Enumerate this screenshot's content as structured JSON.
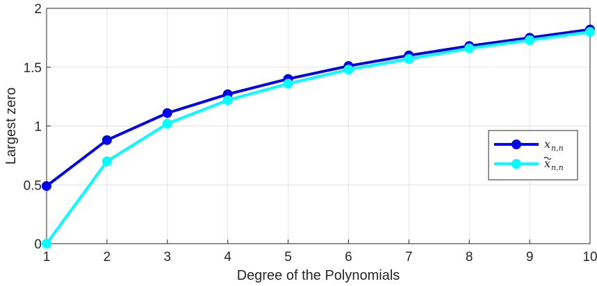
{
  "chart_data": {
    "type": "line",
    "xlabel": "Degree of the Polynomials",
    "ylabel": "Largest zero",
    "xlim": [
      1,
      10
    ],
    "ylim": [
      0,
      2
    ],
    "x": [
      1,
      2,
      3,
      4,
      5,
      6,
      7,
      8,
      9,
      10
    ],
    "xticks": [
      "1",
      "2",
      "3",
      "4",
      "5",
      "6",
      "7",
      "8",
      "9",
      "10"
    ],
    "yticks": [
      "0",
      "0.5",
      "1",
      "1.5",
      "2"
    ],
    "ytick_values": [
      0,
      0.5,
      1,
      1.5,
      2
    ],
    "grid": true,
    "legend_position": "right",
    "series": [
      {
        "name": "x",
        "subscript": "n,n",
        "tilde": false,
        "color": "#0000ee",
        "values": [
          0.49,
          0.88,
          1.11,
          1.27,
          1.4,
          1.51,
          1.6,
          1.68,
          1.75,
          1.82
        ]
      },
      {
        "name": "x",
        "subscript": "n,n",
        "tilde": true,
        "color": "#00ffff",
        "values": [
          0.0,
          0.7,
          1.02,
          1.22,
          1.36,
          1.48,
          1.57,
          1.66,
          1.73,
          1.8
        ]
      }
    ]
  }
}
